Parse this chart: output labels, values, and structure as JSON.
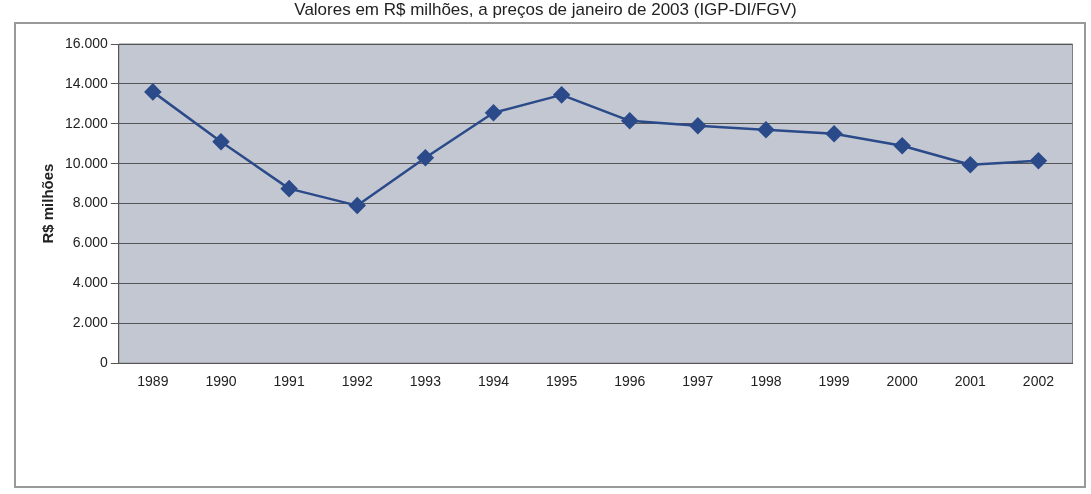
{
  "chart_data": {
    "type": "line",
    "title": "Valores em R$ milhões, a preços de janeiro de 2003 (IGP-DI/FGV)",
    "ylabel": "R$ milhões",
    "categories": [
      "1989",
      "1990",
      "1991",
      "1992",
      "1993",
      "1994",
      "1995",
      "1996",
      "1997",
      "1998",
      "1999",
      "2000",
      "2001",
      "2002"
    ],
    "series": [
      {
        "color": "#2b4a8a",
        "values": [
          13600,
          11100,
          8750,
          7900,
          10300,
          12550,
          13450,
          12150,
          11900,
          11700,
          11500,
          10900,
          9950,
          10150
        ]
      }
    ],
    "ylim": [
      0,
      16000
    ],
    "yticks": [
      {
        "value": 0,
        "label": "0"
      },
      {
        "value": 2000,
        "label": "2.000"
      },
      {
        "value": 4000,
        "label": "4.000"
      },
      {
        "value": 6000,
        "label": "6.000"
      },
      {
        "value": 8000,
        "label": "8.000"
      },
      {
        "value": 10000,
        "label": "10.000"
      },
      {
        "value": 12000,
        "label": "12.000"
      },
      {
        "value": 14000,
        "label": "14.000"
      },
      {
        "value": 16000,
        "label": "16.000"
      }
    ],
    "grid": "y",
    "legend": false,
    "marker": "diamond",
    "line_style": "solid"
  }
}
